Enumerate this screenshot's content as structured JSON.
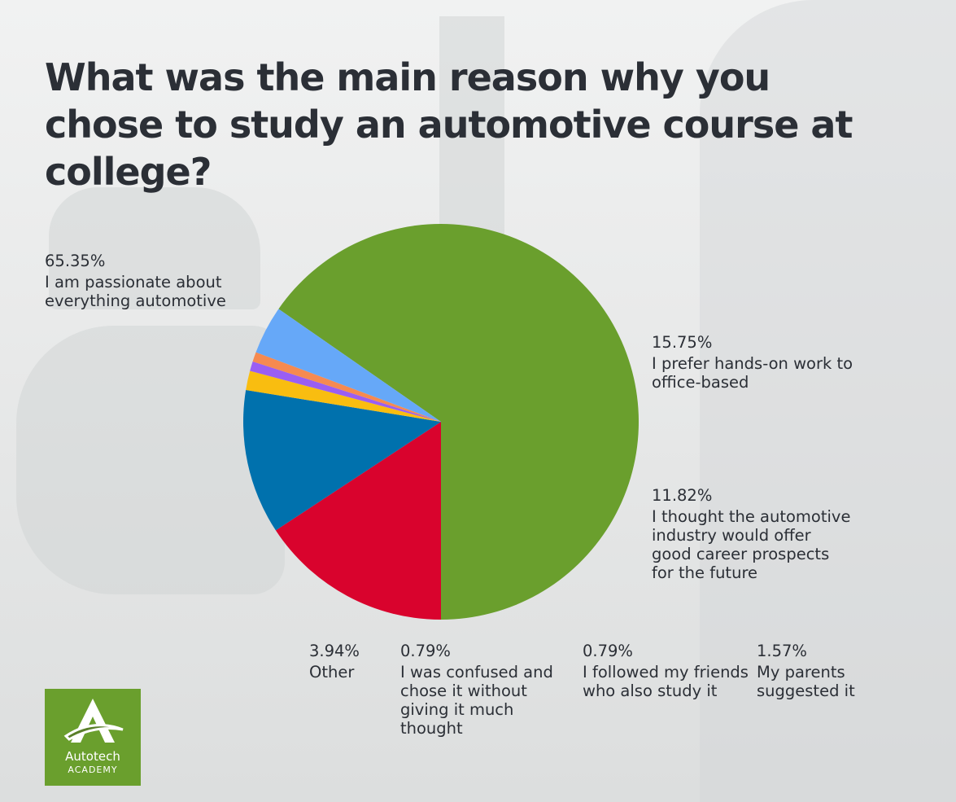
{
  "title": "What was the main reason why you chose to study an automotive course at college?",
  "logo": {
    "line1": "Autotech",
    "line2": "ACADEMY"
  },
  "chart_data": {
    "type": "pie",
    "title": "What was the main reason why you chose to study an automotive course at college?",
    "slices": [
      {
        "label": "I am passionate about everything automotive",
        "value": 65.35,
        "display": "65.35%",
        "color": "#6a9f2d"
      },
      {
        "label": "I prefer hands-on work to office-based",
        "value": 15.75,
        "display": "15.75%",
        "color": "#d9032d"
      },
      {
        "label": "I thought the automotive industry would offer good career prospects for the future",
        "value": 11.82,
        "display": "11.82%",
        "color": "#0071ad"
      },
      {
        "label": "My parents suggested it",
        "value": 1.57,
        "display": "1.57%",
        "color": "#f9bd10"
      },
      {
        "label": "I followed my friends who also study it",
        "value": 0.79,
        "display": "0.79%",
        "color": "#9a5ef2"
      },
      {
        "label": "I was confused and chose it without giving it much thought",
        "value": 0.79,
        "display": "0.79%",
        "color": "#f68a50"
      },
      {
        "label": "Other",
        "value": 3.94,
        "display": "3.94%",
        "color": "#66a8f8"
      }
    ]
  }
}
